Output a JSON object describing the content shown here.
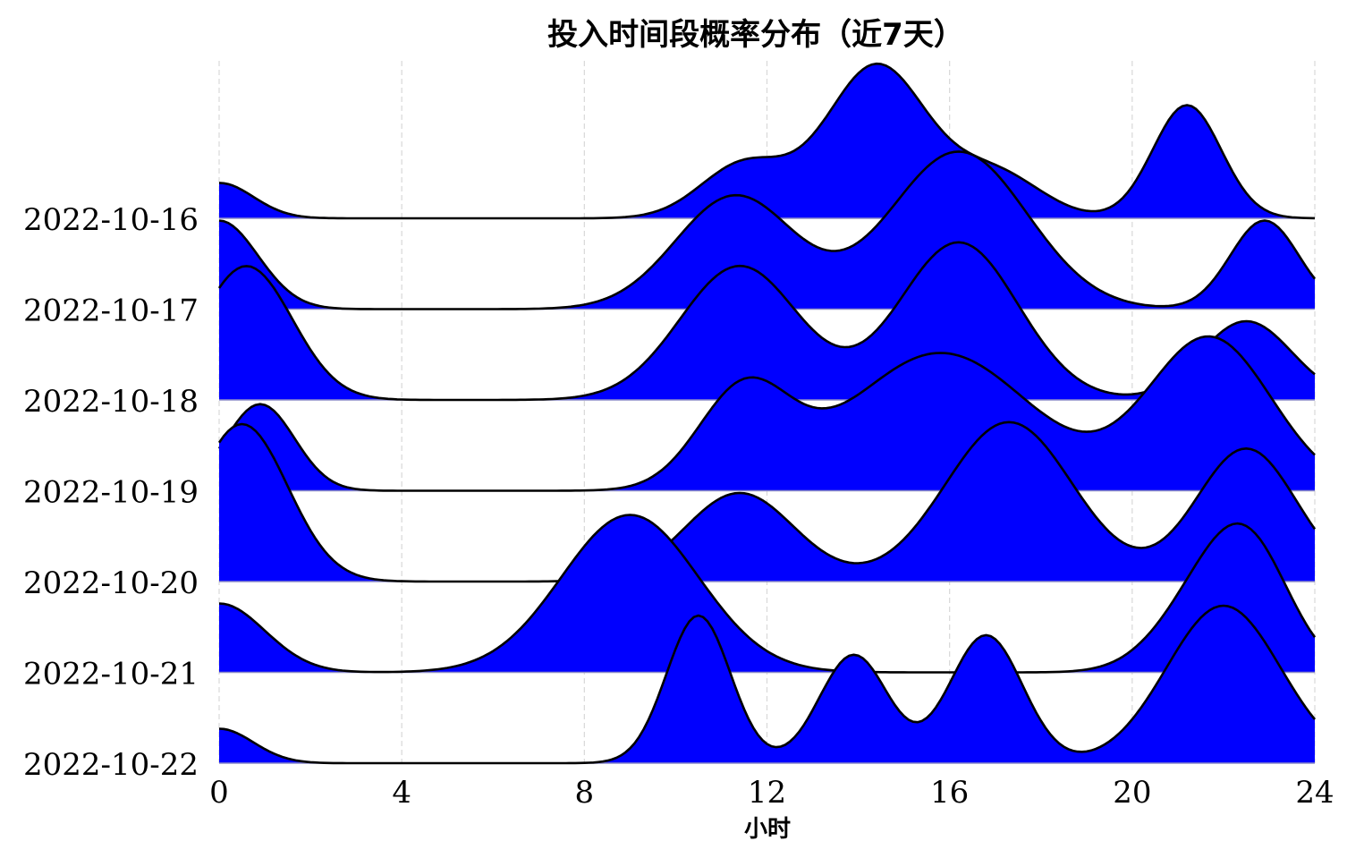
{
  "chart_data": {
    "type": "ridgeline",
    "title": "投入时间段概率分布（近7天）",
    "xlabel": "小时",
    "ylabel": "",
    "xlim": [
      0,
      24
    ],
    "xticks": [
      "0",
      "4",
      "8",
      "12",
      "16",
      "20",
      "24"
    ],
    "grid": "vertical dashed",
    "fill_color": "#0000ff",
    "line_color": "#000000",
    "series": [
      {
        "name": "2022-10-16",
        "peaks": [
          [
            0,
            0.36,
            0.75
          ],
          [
            11.5,
            0.55,
            0.95
          ],
          [
            14.4,
            1.55,
            1.1
          ],
          [
            17.0,
            0.45,
            1.0
          ],
          [
            21.2,
            1.15,
            0.75
          ]
        ]
      },
      {
        "name": "2022-10-17",
        "peaks": [
          [
            0,
            0.9,
            0.85
          ],
          [
            11.3,
            1.15,
            1.3
          ],
          [
            16.2,
            1.6,
            1.5
          ],
          [
            22.9,
            0.9,
            0.75
          ]
        ]
      },
      {
        "name": "2022-10-18",
        "peaks": [
          [
            0.6,
            1.36,
            1.0
          ],
          [
            11.4,
            1.36,
            1.3
          ],
          [
            16.2,
            1.6,
            1.3
          ],
          [
            22.5,
            0.8,
            1.0
          ]
        ]
      },
      {
        "name": "2022-10-19",
        "peaks": [
          [
            0.9,
            0.88,
            0.75
          ],
          [
            11.5,
            1.0,
            1.0
          ],
          [
            15.8,
            1.4,
            2.0
          ],
          [
            21.7,
            1.55,
            1.35
          ]
        ]
      },
      {
        "name": "2022-10-20",
        "peaks": [
          [
            0.5,
            1.6,
            1.0
          ],
          [
            11.4,
            0.9,
            1.2
          ],
          [
            17.3,
            1.62,
            1.4
          ],
          [
            22.5,
            1.35,
            1.1
          ]
        ]
      },
      {
        "name": "2022-10-21",
        "peaks": [
          [
            0,
            0.7,
            1.0
          ],
          [
            9.0,
            1.6,
            1.5
          ],
          [
            21.5,
            0.65,
            1.0
          ],
          [
            22.6,
            1.1,
            0.9
          ]
        ]
      },
      {
        "name": "2022-10-22",
        "peaks": [
          [
            0,
            0.35,
            0.75
          ],
          [
            10.5,
            1.5,
            0.7
          ],
          [
            13.9,
            1.1,
            0.75
          ],
          [
            16.8,
            1.3,
            0.8
          ],
          [
            22.0,
            1.6,
            1.25
          ]
        ]
      }
    ]
  }
}
